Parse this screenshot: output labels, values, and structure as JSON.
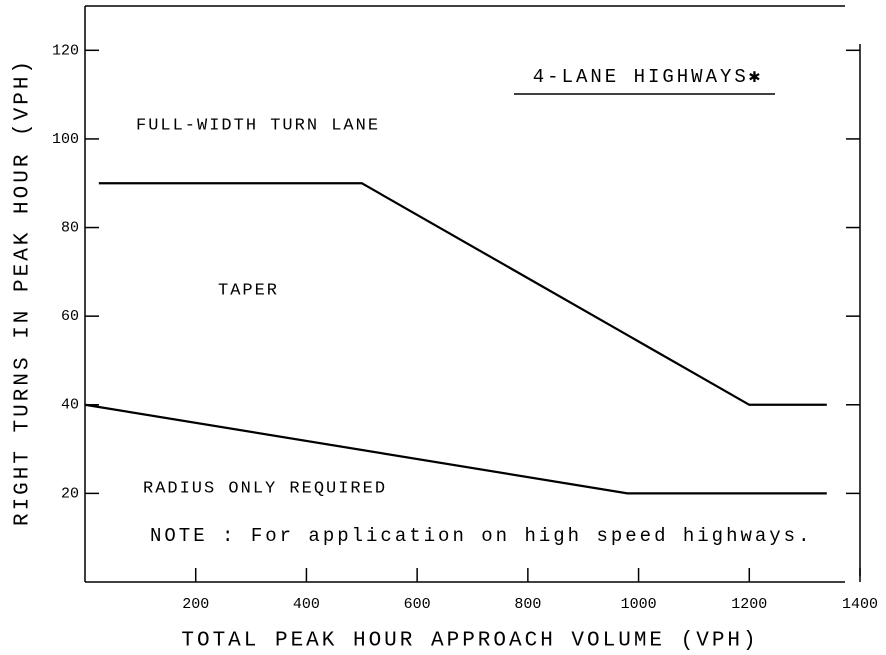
{
  "chart_data": {
    "type": "line",
    "title": "4-LANE HIGHWAYS✱",
    "x_label": "TOTAL PEAK HOUR APPROACH VOLUME (VPH)",
    "y_label": "RIGHT TURNS IN PEAK HOUR (VPH)",
    "annotations": [
      "FULL-WIDTH TURN LANE",
      "TAPER",
      "RADIUS ONLY REQUIRED",
      "NOTE : For application on high speed highways."
    ],
    "series": [
      {
        "color": "#000000",
        "x": [
          25,
          500,
          1200,
          1340
        ],
        "values": [
          90,
          90,
          40,
          40
        ]
      },
      {
        "color": "#000000",
        "x": [
          0,
          980,
          1340
        ],
        "values": [
          40,
          20,
          20
        ]
      }
    ],
    "xlim": [
      0,
      1400
    ],
    "xticks": [
      200,
      400,
      600,
      800,
      1000,
      1200,
      1400
    ],
    "ylim": [
      0,
      130
    ],
    "yticks": [
      20,
      40,
      60,
      80,
      100,
      120
    ],
    "grid": false
  }
}
